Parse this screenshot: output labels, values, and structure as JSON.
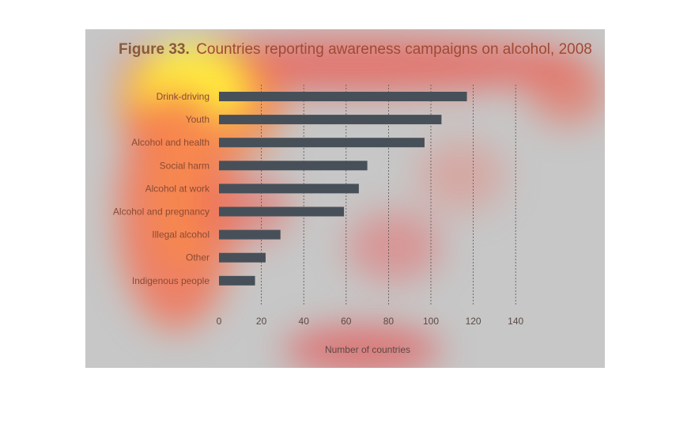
{
  "figure": {
    "title_number": "Figure 33.",
    "title_text": "Countries reporting awareness campaigns on alcohol, 2008"
  },
  "chart_data": {
    "type": "bar",
    "orientation": "horizontal",
    "title": "Figure 33. Countries reporting awareness campaigns on alcohol, 2008",
    "categories": [
      "Drink-driving",
      "Youth",
      "Alcohol and health",
      "Social harm",
      "Alcohol at work",
      "Alcohol and pregnancy",
      "Illegal alcohol",
      "Other",
      "Indigenous people"
    ],
    "values": [
      117,
      105,
      97,
      70,
      66,
      59,
      29,
      22,
      17
    ],
    "xlabel": "Number of countries",
    "ylabel": "",
    "xlim": [
      0,
      140
    ],
    "xticks": [
      "0",
      "20",
      "40",
      "60",
      "80",
      "100",
      "120",
      "140"
    ],
    "grid": "vertical dotted",
    "bar_color": "#475059"
  }
}
